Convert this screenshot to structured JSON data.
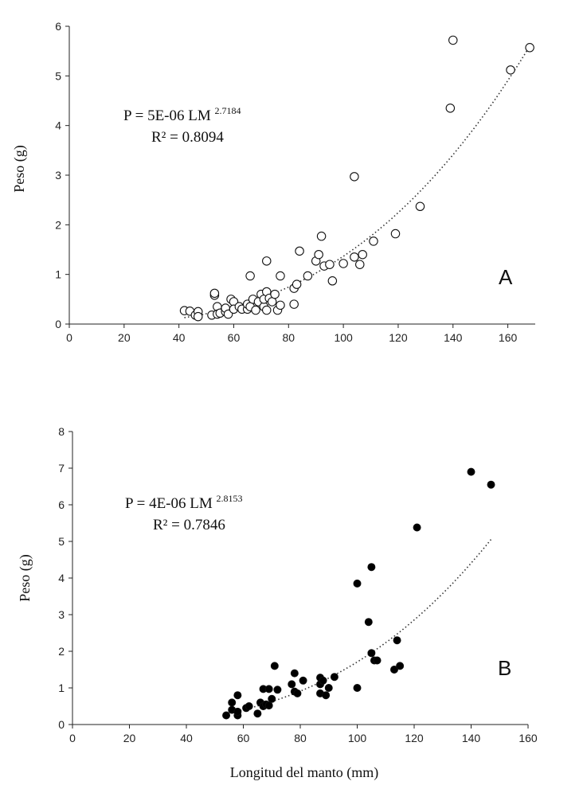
{
  "chart_data": [
    {
      "type": "scatter",
      "panel": "A",
      "marker": "open",
      "xlim": [
        0,
        170
      ],
      "ylim": [
        0,
        6
      ],
      "xticks": [
        0,
        20,
        40,
        60,
        80,
        100,
        120,
        140,
        160
      ],
      "yticks": [
        0,
        1,
        2,
        3,
        4,
        5,
        6
      ],
      "ylabel": "Peso (g)",
      "xlabel": "",
      "equation": {
        "main": "P = 5E-06 LM ",
        "exponent": "2.7184",
        "r2": "R² = 0.8094"
      },
      "trend": {
        "a": 5e-06,
        "b": 2.7184,
        "x_range": [
          42,
          168
        ]
      },
      "points": [
        [
          42,
          0.27
        ],
        [
          44,
          0.26
        ],
        [
          46,
          0.18
        ],
        [
          47,
          0.25
        ],
        [
          47,
          0.15
        ],
        [
          52,
          0.18
        ],
        [
          53,
          0.58
        ],
        [
          53,
          0.62
        ],
        [
          54,
          0.35
        ],
        [
          54,
          0.2
        ],
        [
          55,
          0.22
        ],
        [
          57,
          0.25
        ],
        [
          57,
          0.32
        ],
        [
          58,
          0.2
        ],
        [
          59,
          0.5
        ],
        [
          60,
          0.45
        ],
        [
          60,
          0.3
        ],
        [
          62,
          0.35
        ],
        [
          63,
          0.3
        ],
        [
          65,
          0.3
        ],
        [
          65,
          0.4
        ],
        [
          66,
          0.97
        ],
        [
          66,
          0.35
        ],
        [
          67,
          0.5
        ],
        [
          68,
          0.28
        ],
        [
          69,
          0.45
        ],
        [
          70,
          0.6
        ],
        [
          71,
          0.35
        ],
        [
          71,
          0.5
        ],
        [
          72,
          0.28
        ],
        [
          72,
          0.65
        ],
        [
          72,
          1.27
        ],
        [
          73,
          0.52
        ],
        [
          74,
          0.45
        ],
        [
          75,
          0.6
        ],
        [
          76,
          0.28
        ],
        [
          77,
          0.38
        ],
        [
          77,
          0.97
        ],
        [
          82,
          0.4
        ],
        [
          82,
          0.72
        ],
        [
          83,
          0.8
        ],
        [
          84,
          1.47
        ],
        [
          87,
          0.97
        ],
        [
          90,
          1.27
        ],
        [
          91,
          1.4
        ],
        [
          92,
          1.77
        ],
        [
          93,
          1.17
        ],
        [
          95,
          1.2
        ],
        [
          96,
          0.87
        ],
        [
          100,
          1.22
        ],
        [
          104,
          1.35
        ],
        [
          104,
          2.97
        ],
        [
          106,
          1.2
        ],
        [
          107,
          1.4
        ],
        [
          111,
          1.67
        ],
        [
          119,
          1.82
        ],
        [
          128,
          2.37
        ],
        [
          139,
          4.35
        ],
        [
          140,
          5.72
        ],
        [
          161,
          5.12
        ],
        [
          168,
          5.57
        ]
      ]
    },
    {
      "type": "scatter",
      "panel": "B",
      "marker": "filled",
      "xlim": [
        0,
        160
      ],
      "ylim": [
        0,
        8
      ],
      "xticks": [
        0,
        20,
        40,
        60,
        80,
        100,
        120,
        140,
        160
      ],
      "yticks": [
        0,
        1,
        2,
        3,
        4,
        5,
        6,
        7,
        8
      ],
      "ylabel": "Peso (g)",
      "xlabel": "Longitud del manto (mm)",
      "equation": {
        "main": "P = 4E-06 LM ",
        "exponent": "2.8153",
        "r2": "R² = 0.7846"
      },
      "trend": {
        "a": 4e-06,
        "b": 2.8153,
        "x_range": [
          54,
          147
        ]
      },
      "points": [
        [
          54,
          0.25
        ],
        [
          56,
          0.4
        ],
        [
          56,
          0.6
        ],
        [
          58,
          0.25
        ],
        [
          58,
          0.35
        ],
        [
          58,
          0.8
        ],
        [
          61,
          0.45
        ],
        [
          62,
          0.5
        ],
        [
          65,
          0.3
        ],
        [
          66,
          0.6
        ],
        [
          67,
          0.97
        ],
        [
          67,
          0.5
        ],
        [
          68,
          0.55
        ],
        [
          69,
          0.97
        ],
        [
          69,
          0.52
        ],
        [
          70,
          0.7
        ],
        [
          71,
          1.6
        ],
        [
          72,
          0.95
        ],
        [
          77,
          1.1
        ],
        [
          78,
          1.4
        ],
        [
          78,
          0.9
        ],
        [
          79,
          0.85
        ],
        [
          81,
          1.2
        ],
        [
          87,
          0.85
        ],
        [
          87,
          1.1
        ],
        [
          87,
          1.28
        ],
        [
          88,
          1.2
        ],
        [
          89,
          0.8
        ],
        [
          90,
          1.0
        ],
        [
          92,
          1.3
        ],
        [
          100,
          1.0
        ],
        [
          100,
          3.85
        ],
        [
          104,
          2.8
        ],
        [
          105,
          1.95
        ],
        [
          105,
          4.3
        ],
        [
          106,
          1.75
        ],
        [
          107,
          1.75
        ],
        [
          113,
          1.5
        ],
        [
          114,
          2.3
        ],
        [
          115,
          1.6
        ],
        [
          121,
          5.38
        ],
        [
          140,
          6.9
        ],
        [
          147,
          6.55
        ]
      ]
    }
  ]
}
